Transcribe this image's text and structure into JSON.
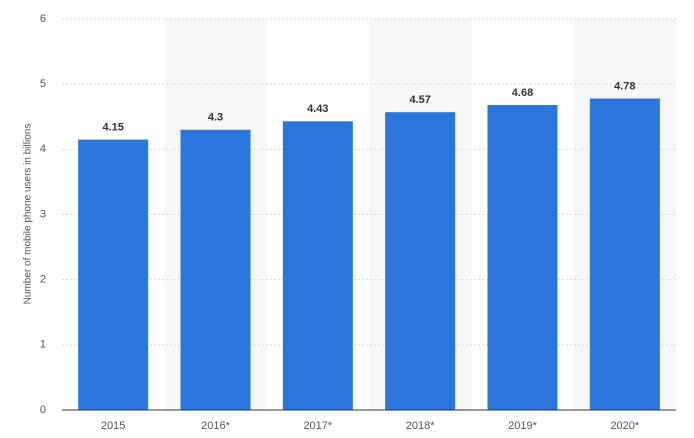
{
  "chart_data": {
    "type": "bar",
    "y_label": "Number of mobile phone users in billions",
    "categories": [
      "2015",
      "2016*",
      "2017*",
      "2018*",
      "2019*",
      "2020*"
    ],
    "values": [
      4.15,
      4.3,
      4.43,
      4.57,
      4.68,
      4.78
    ],
    "color": "#2a76dd",
    "ylim": [
      0,
      6
    ],
    "yticks": [
      0,
      1,
      2,
      3,
      4,
      5,
      6
    ],
    "grid": true
  }
}
